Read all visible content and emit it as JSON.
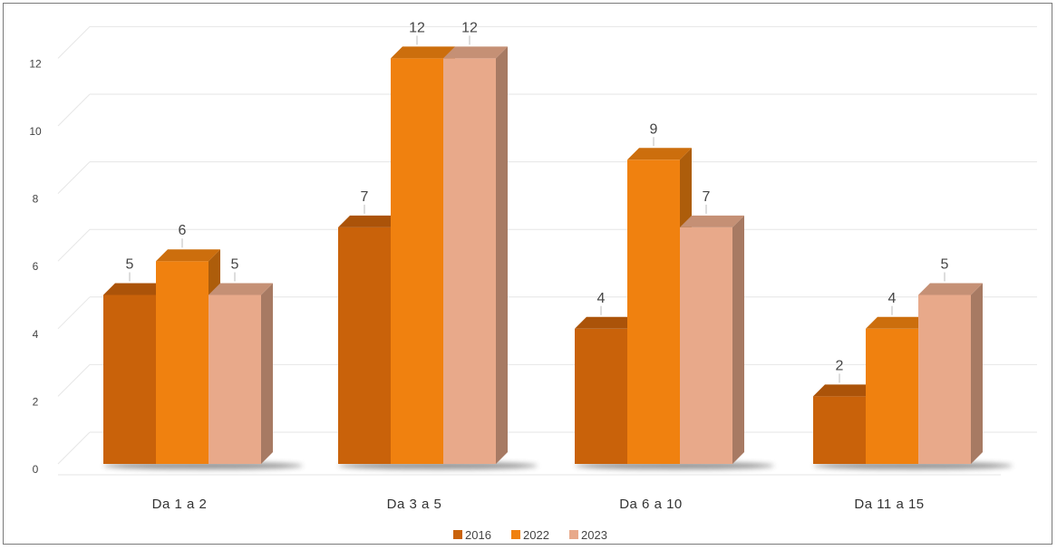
{
  "chart_data": {
    "type": "bar",
    "categories": [
      "Da 1 a 2",
      "Da 3 a 5",
      "Da 6 a 10",
      "Da 11 a 15"
    ],
    "series": [
      {
        "name": "2016",
        "values": [
          5,
          7,
          4,
          2
        ],
        "color": "#C9620A"
      },
      {
        "name": "2022",
        "values": [
          6,
          12,
          9,
          4
        ],
        "color": "#F0810F"
      },
      {
        "name": "2023",
        "values": [
          5,
          12,
          7,
          5
        ],
        "color": "#E8A98A"
      }
    ],
    "yticks": [
      0,
      2,
      4,
      6,
      8,
      10,
      12
    ],
    "ylim": [
      0,
      12
    ],
    "grid": true,
    "legend_position": "bottom",
    "style": "3d-clustered-column"
  }
}
